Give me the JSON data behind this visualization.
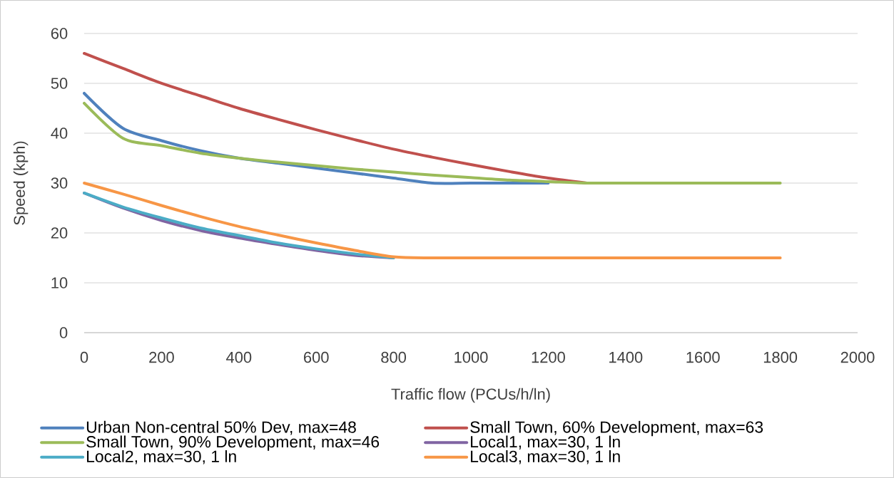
{
  "chart_data": {
    "type": "line",
    "xlabel": "Traffic flow (PCUs/h/ln)",
    "ylabel": "Speed (kph)",
    "x": [
      0,
      100,
      200,
      300,
      400,
      500,
      600,
      700,
      800,
      900,
      1000,
      1100,
      1200,
      1300,
      1400,
      1500,
      1600,
      1700,
      1800
    ],
    "xlim": [
      0,
      2000
    ],
    "ylim": [
      0,
      60
    ],
    "xticks": [
      0,
      200,
      400,
      600,
      800,
      1000,
      1200,
      1400,
      1600,
      1800,
      2000
    ],
    "yticks": [
      0,
      10,
      20,
      30,
      40,
      50,
      60
    ],
    "grid": "y",
    "legend": "bottom",
    "series": [
      {
        "name": "Urban Non-central 50% Dev, max=48",
        "color": "#4f81bd",
        "values": [
          48,
          41,
          38.5,
          36.5,
          35,
          34,
          33,
          32,
          31,
          30,
          30,
          30,
          30,
          null,
          null,
          null,
          null,
          null,
          null
        ]
      },
      {
        "name": "Small Town, 60% Development, max=63",
        "color": "#c0504d",
        "values": [
          56,
          53,
          50,
          47.5,
          45,
          42.8,
          40.7,
          38.7,
          36.8,
          35.2,
          33.7,
          32.3,
          31,
          30,
          null,
          null,
          null,
          null,
          null
        ]
      },
      {
        "name": "Small Town, 90% Development, max=46",
        "color": "#9bbb59",
        "values": [
          46,
          39,
          37.5,
          36,
          35,
          34.2,
          33.5,
          32.8,
          32.2,
          31.6,
          31.1,
          30.6,
          30.3,
          30,
          30,
          30,
          30,
          30,
          30
        ]
      },
      {
        "name": "Local1, max=30, 1 ln",
        "color": "#8064a2",
        "values": [
          28,
          25,
          22.5,
          20.5,
          19,
          17.7,
          16.5,
          15.5,
          15,
          null,
          null,
          null,
          null,
          null,
          null,
          null,
          null,
          null,
          null
        ]
      },
      {
        "name": "Local2, max=30, 1 ln",
        "color": "#4bacc6",
        "values": [
          28,
          25.2,
          23,
          21,
          19.5,
          18,
          16.8,
          15.8,
          15,
          null,
          null,
          null,
          null,
          null,
          null,
          null,
          null,
          null,
          null
        ]
      },
      {
        "name": "Local3, max=30, 1 ln",
        "color": "#f79646",
        "values": [
          30,
          27.8,
          25.5,
          23.3,
          21.3,
          19.6,
          18,
          16.5,
          15.2,
          15,
          15,
          15,
          15,
          15,
          15,
          15,
          15,
          15,
          15
        ]
      }
    ]
  }
}
